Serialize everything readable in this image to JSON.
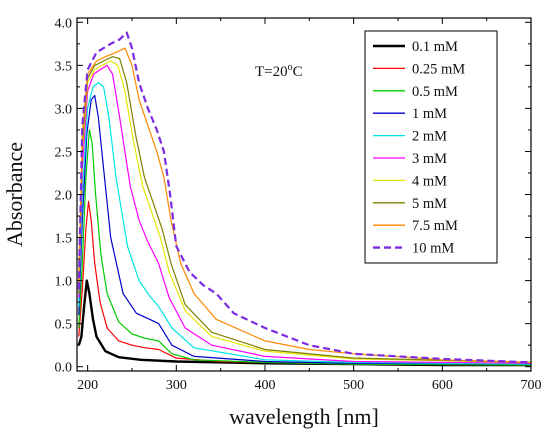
{
  "chart_data": {
    "type": "line",
    "title": "",
    "xlabel": "wavelength [nm]",
    "ylabel": "Absorbance",
    "xlim": [
      188,
      700
    ],
    "ylim": [
      -0.05,
      4.05
    ],
    "x_ticks": [
      200,
      300,
      400,
      500,
      600,
      700
    ],
    "y_ticks": [
      0.0,
      0.5,
      1.0,
      1.5,
      2.0,
      2.5,
      3.0,
      3.5,
      4.0
    ],
    "x_tick_labels": [
      "200",
      "300",
      "400",
      "500",
      "600",
      "700"
    ],
    "y_tick_labels": [
      "0.0",
      "0.5",
      "1.0",
      "1.5",
      "2.0",
      "2.5",
      "3.0",
      "3.5",
      "4.0"
    ],
    "annotation": {
      "base": "T=20",
      "sup": "o",
      "tail": "C"
    },
    "legend_position": "top-right",
    "grid": false,
    "series": [
      {
        "name": "0.1 mM",
        "color": "#000000",
        "dashed": false,
        "points": [
          [
            190,
            0.25
          ],
          [
            193,
            0.35
          ],
          [
            196,
            0.7
          ],
          [
            199,
            1.0
          ],
          [
            202,
            0.85
          ],
          [
            206,
            0.55
          ],
          [
            210,
            0.35
          ],
          [
            220,
            0.18
          ],
          [
            235,
            0.11
          ],
          [
            260,
            0.08
          ],
          [
            300,
            0.06
          ],
          [
            400,
            0.04
          ],
          [
            500,
            0.03
          ],
          [
            600,
            0.02
          ],
          [
            700,
            0.02
          ]
        ]
      },
      {
        "name": "0.25 mM",
        "color": "#ff0000",
        "dashed": false,
        "points": [
          [
            190,
            0.35
          ],
          [
            194,
            0.9
          ],
          [
            198,
            1.6
          ],
          [
            201,
            1.92
          ],
          [
            204,
            1.7
          ],
          [
            208,
            1.2
          ],
          [
            214,
            0.75
          ],
          [
            222,
            0.45
          ],
          [
            235,
            0.3
          ],
          [
            250,
            0.25
          ],
          [
            265,
            0.22
          ],
          [
            280,
            0.2
          ],
          [
            300,
            0.1
          ],
          [
            350,
            0.06
          ],
          [
            400,
            0.05
          ],
          [
            500,
            0.03
          ],
          [
            700,
            0.02
          ]
        ]
      },
      {
        "name": "0.5 mM",
        "color": "#00cc00",
        "dashed": false,
        "points": [
          [
            190,
            0.45
          ],
          [
            194,
            1.2
          ],
          [
            198,
            2.2
          ],
          [
            202,
            2.75
          ],
          [
            205,
            2.6
          ],
          [
            209,
            2.0
          ],
          [
            215,
            1.3
          ],
          [
            222,
            0.85
          ],
          [
            235,
            0.52
          ],
          [
            250,
            0.38
          ],
          [
            265,
            0.33
          ],
          [
            280,
            0.3
          ],
          [
            295,
            0.15
          ],
          [
            320,
            0.08
          ],
          [
            400,
            0.05
          ],
          [
            500,
            0.03
          ],
          [
            700,
            0.02
          ]
        ]
      },
      {
        "name": "1 mM",
        "color": "#0000cc",
        "dashed": false,
        "points": [
          [
            190,
            0.6
          ],
          [
            194,
            1.7
          ],
          [
            199,
            2.7
          ],
          [
            204,
            3.1
          ],
          [
            208,
            3.15
          ],
          [
            212,
            2.9
          ],
          [
            218,
            2.3
          ],
          [
            226,
            1.5
          ],
          [
            240,
            0.85
          ],
          [
            255,
            0.62
          ],
          [
            270,
            0.55
          ],
          [
            280,
            0.5
          ],
          [
            295,
            0.25
          ],
          [
            320,
            0.12
          ],
          [
            400,
            0.06
          ],
          [
            500,
            0.04
          ],
          [
            700,
            0.03
          ]
        ]
      },
      {
        "name": "2 mM",
        "color": "#00e5e5",
        "dashed": false,
        "points": [
          [
            190,
            0.7
          ],
          [
            194,
            2.0
          ],
          [
            200,
            3.0
          ],
          [
            206,
            3.25
          ],
          [
            212,
            3.3
          ],
          [
            218,
            3.25
          ],
          [
            224,
            2.9
          ],
          [
            232,
            2.2
          ],
          [
            245,
            1.4
          ],
          [
            258,
            1.0
          ],
          [
            270,
            0.82
          ],
          [
            280,
            0.7
          ],
          [
            295,
            0.45
          ],
          [
            320,
            0.22
          ],
          [
            400,
            0.08
          ],
          [
            500,
            0.05
          ],
          [
            700,
            0.03
          ]
        ]
      },
      {
        "name": "3 mM",
        "color": "#ff00ff",
        "dashed": false,
        "points": [
          [
            190,
            0.8
          ],
          [
            194,
            2.3
          ],
          [
            200,
            3.2
          ],
          [
            207,
            3.4
          ],
          [
            214,
            3.45
          ],
          [
            222,
            3.5
          ],
          [
            228,
            3.4
          ],
          [
            236,
            2.9
          ],
          [
            248,
            2.1
          ],
          [
            258,
            1.7
          ],
          [
            268,
            1.45
          ],
          [
            280,
            1.2
          ],
          [
            292,
            0.8
          ],
          [
            310,
            0.45
          ],
          [
            340,
            0.25
          ],
          [
            400,
            0.12
          ],
          [
            500,
            0.06
          ],
          [
            700,
            0.04
          ]
        ]
      },
      {
        "name": "4 mM",
        "color": "#e6e600",
        "dashed": false,
        "points": [
          [
            190,
            0.85
          ],
          [
            194,
            2.5
          ],
          [
            200,
            3.3
          ],
          [
            208,
            3.45
          ],
          [
            216,
            3.5
          ],
          [
            226,
            3.55
          ],
          [
            234,
            3.5
          ],
          [
            242,
            3.2
          ],
          [
            252,
            2.6
          ],
          [
            262,
            2.1
          ],
          [
            272,
            1.8
          ],
          [
            282,
            1.5
          ],
          [
            292,
            1.1
          ],
          [
            310,
            0.65
          ],
          [
            340,
            0.35
          ],
          [
            400,
            0.18
          ],
          [
            500,
            0.09
          ],
          [
            700,
            0.05
          ]
        ]
      },
      {
        "name": "5 mM",
        "color": "#808000",
        "dashed": false,
        "points": [
          [
            190,
            0.85
          ],
          [
            194,
            2.6
          ],
          [
            200,
            3.35
          ],
          [
            208,
            3.5
          ],
          [
            218,
            3.55
          ],
          [
            228,
            3.6
          ],
          [
            236,
            3.58
          ],
          [
            244,
            3.3
          ],
          [
            254,
            2.7
          ],
          [
            264,
            2.2
          ],
          [
            274,
            1.9
          ],
          [
            284,
            1.6
          ],
          [
            294,
            1.2
          ],
          [
            310,
            0.72
          ],
          [
            340,
            0.4
          ],
          [
            400,
            0.2
          ],
          [
            500,
            0.1
          ],
          [
            700,
            0.05
          ]
        ]
      },
      {
        "name": "7.5 mM",
        "color": "#ff8800",
        "dashed": false,
        "points": [
          [
            190,
            0.9
          ],
          [
            194,
            2.7
          ],
          [
            200,
            3.4
          ],
          [
            210,
            3.55
          ],
          [
            220,
            3.6
          ],
          [
            232,
            3.65
          ],
          [
            242,
            3.7
          ],
          [
            250,
            3.5
          ],
          [
            258,
            3.1
          ],
          [
            268,
            2.8
          ],
          [
            278,
            2.5
          ],
          [
            286,
            2.2
          ],
          [
            294,
            1.7
          ],
          [
            305,
            1.2
          ],
          [
            320,
            0.85
          ],
          [
            345,
            0.55
          ],
          [
            400,
            0.3
          ],
          [
            450,
            0.2
          ],
          [
            500,
            0.15
          ],
          [
            600,
            0.08
          ],
          [
            700,
            0.05
          ]
        ]
      },
      {
        "name": "10 mM",
        "color": "#7b2be2",
        "dashed": true,
        "points": [
          [
            190,
            0.9
          ],
          [
            194,
            2.8
          ],
          [
            200,
            3.45
          ],
          [
            210,
            3.65
          ],
          [
            218,
            3.7
          ],
          [
            226,
            3.75
          ],
          [
            236,
            3.8
          ],
          [
            244,
            3.88
          ],
          [
            250,
            3.7
          ],
          [
            258,
            3.3
          ],
          [
            268,
            3.0
          ],
          [
            278,
            2.75
          ],
          [
            286,
            2.5
          ],
          [
            293,
            2.0
          ],
          [
            300,
            1.4
          ],
          [
            315,
            1.1
          ],
          [
            330,
            0.95
          ],
          [
            345,
            0.85
          ],
          [
            365,
            0.62
          ],
          [
            400,
            0.45
          ],
          [
            450,
            0.25
          ],
          [
            500,
            0.15
          ],
          [
            600,
            0.09
          ],
          [
            700,
            0.05
          ]
        ]
      }
    ]
  }
}
